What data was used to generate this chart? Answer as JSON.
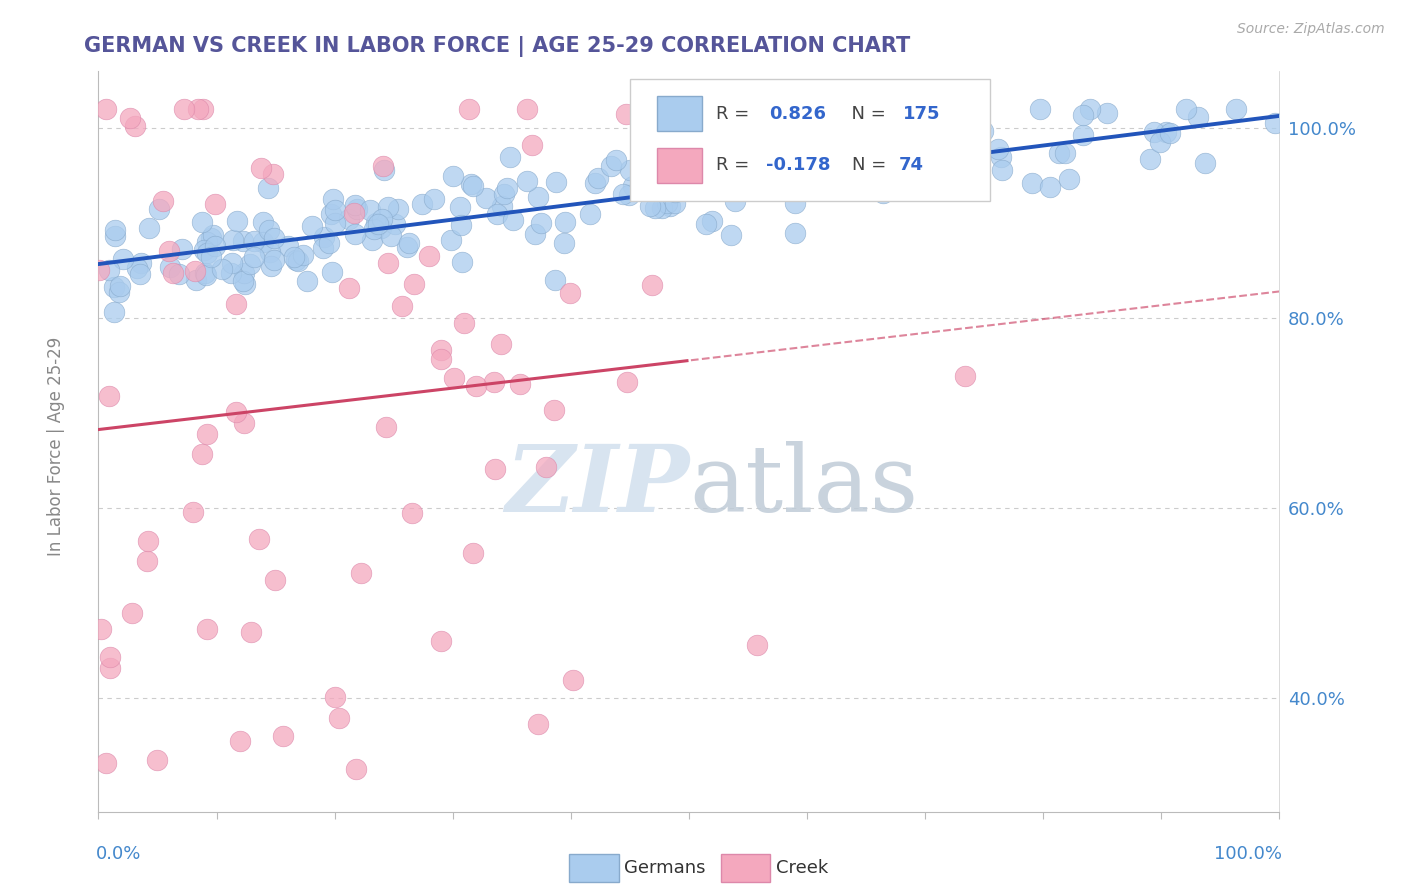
{
  "title": "GERMAN VS CREEK IN LABOR FORCE | AGE 25-29 CORRELATION CHART",
  "source_text": "Source: ZipAtlas.com",
  "ylabel": "In Labor Force | Age 25-29",
  "xlim": [
    0.0,
    1.0
  ],
  "ylim": [
    0.28,
    1.06
  ],
  "yticks": [
    0.4,
    0.6,
    0.8,
    1.0
  ],
  "ytick_labels": [
    "40.0%",
    "60.0%",
    "80.0%",
    "100.0%"
  ],
  "german_R": 0.826,
  "german_N": 175,
  "german_color": "#aaccee",
  "german_edge_color": "#88aacc",
  "german_line_color": "#2255bb",
  "creek_R": -0.178,
  "creek_N": 74,
  "creek_color": "#f4a8be",
  "creek_edge_color": "#dd88aa",
  "creek_line_color": "#cc4466",
  "watermark_color": "#d8e4f0",
  "background_color": "#ffffff",
  "title_color": "#555599",
  "label_color": "#4488cc",
  "grid_color": "#cccccc",
  "legend_r_color": "#3366cc",
  "legend_n_color": "#3366cc"
}
